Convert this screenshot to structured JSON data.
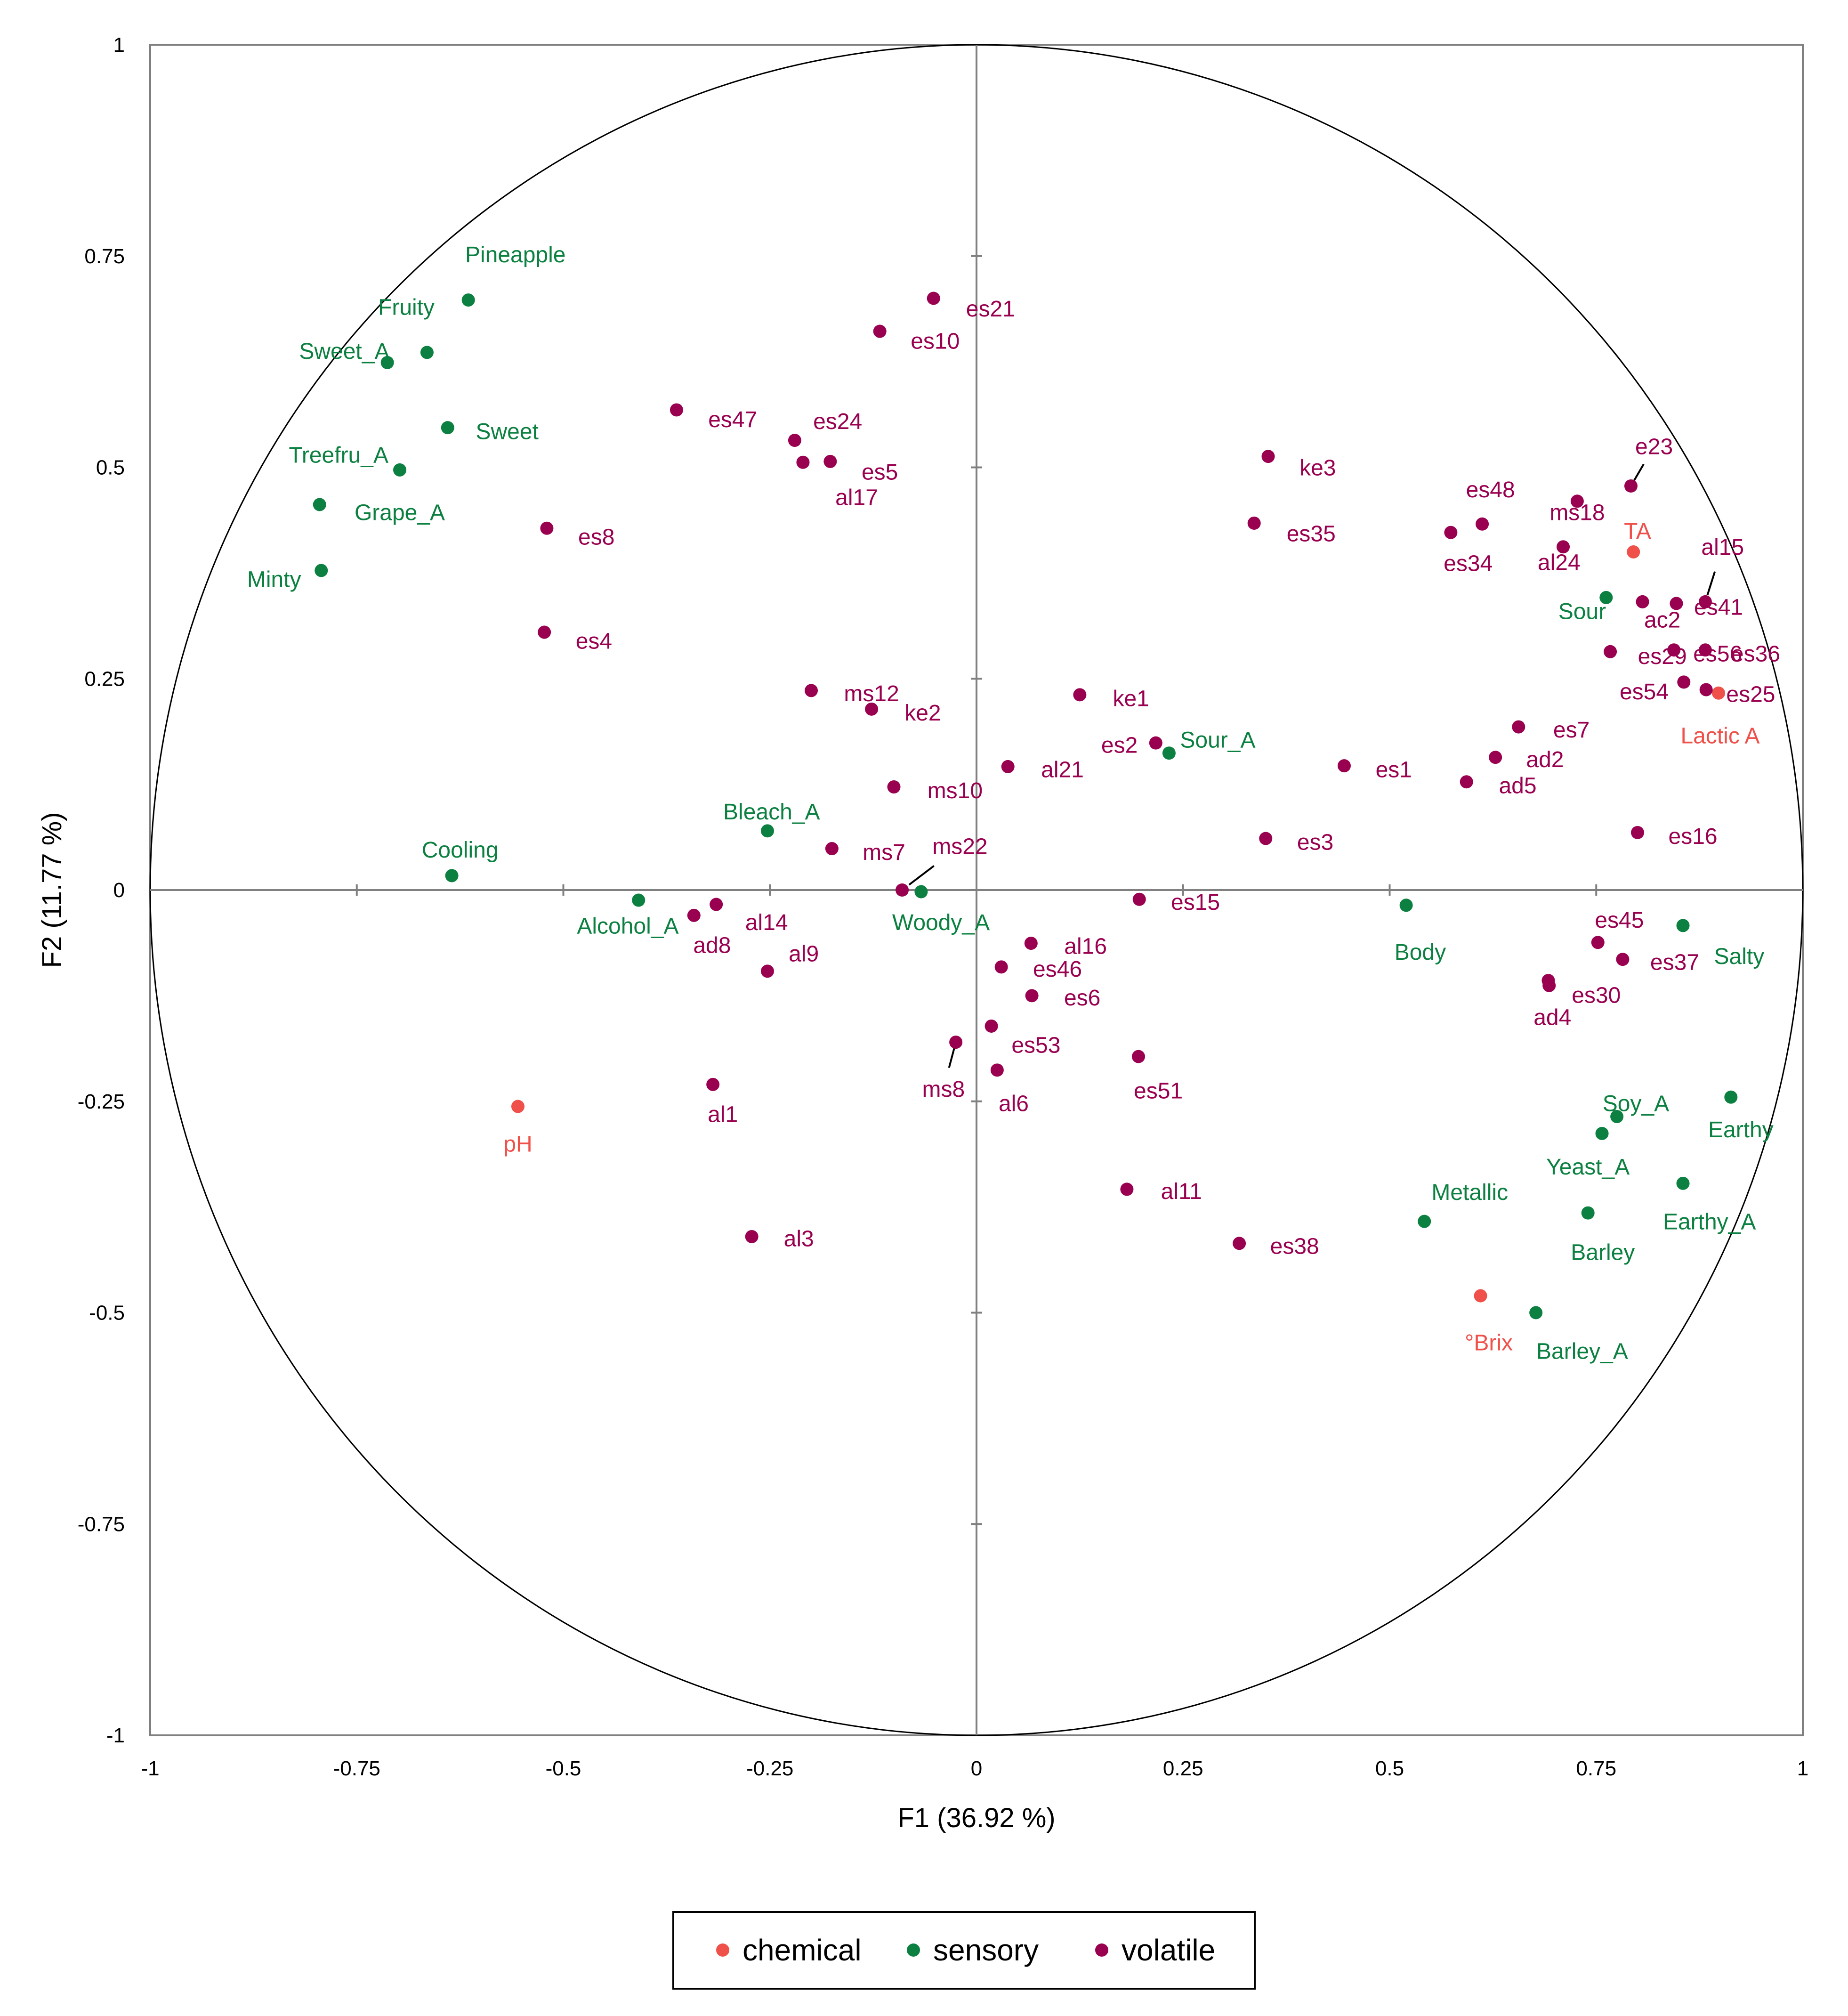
{
  "chart_data": {
    "type": "scatter",
    "title": "",
    "xlabel": "F1 (36.92 %)",
    "ylabel": "F2 (11.77 %)",
    "xlim": [
      -1,
      1
    ],
    "ylim": [
      -1,
      1
    ],
    "xticks": [
      "-1",
      "-0.75",
      "-0.5",
      "-0.25",
      "0",
      "0.25",
      "0.5",
      "0.75",
      "1"
    ],
    "yticks": [
      "1",
      "0.75",
      "0.5",
      "0.25",
      "0",
      "-0.25",
      "-0.5",
      "-0.75",
      "-1"
    ],
    "grid": false,
    "correlation_circle": true,
    "legend_position": "bottom",
    "colors": {
      "chemical": "#f0504a",
      "sensory": "#0b8040",
      "volatile": "#990050"
    },
    "series": [
      {
        "name": "chemical",
        "points": [
          {
            "label": "TA",
            "x": 0.795,
            "y": 0.4,
            "lx": 0.8,
            "ly": 0.425
          },
          {
            "label": "Lactic A",
            "x": 0.898,
            "y": 0.233,
            "lx": 0.9,
            "ly": 0.183
          },
          {
            "label": "pH",
            "x": -0.555,
            "y": -0.256,
            "lx": -0.555,
            "ly": -0.3
          },
          {
            "label": "°Brix",
            "x": 0.61,
            "y": -0.48,
            "lx": 0.62,
            "ly": -0.535
          }
        ]
      },
      {
        "name": "sensory",
        "points": [
          {
            "label": "Pineapple",
            "x": -0.615,
            "y": 0.698,
            "lx": -0.558,
            "ly": 0.752
          },
          {
            "label": "Fruity",
            "x": -0.665,
            "y": 0.636,
            "lx": -0.69,
            "ly": 0.69
          },
          {
            "label": "Sweet_A",
            "x": -0.713,
            "y": 0.624,
            "lx": -0.765,
            "ly": 0.638
          },
          {
            "label": "Sweet",
            "x": -0.64,
            "y": 0.547,
            "lx": -0.568,
            "ly": 0.543
          },
          {
            "label": "Treefru_A",
            "x": -0.698,
            "y": 0.497,
            "lx": -0.772,
            "ly": 0.515
          },
          {
            "label": "Grape_A",
            "x": -0.795,
            "y": 0.456,
            "lx": -0.698,
            "ly": 0.447
          },
          {
            "label": "Minty",
            "x": -0.793,
            "y": 0.378,
            "lx": -0.85,
            "ly": 0.368
          },
          {
            "label": "Sour",
            "x": 0.762,
            "y": 0.346,
            "lx": 0.733,
            "ly": 0.33
          },
          {
            "label": "Sour_A",
            "x": 0.233,
            "y": 0.162,
            "lx": 0.292,
            "ly": 0.178
          },
          {
            "label": "Bleach_A",
            "x": -0.253,
            "y": 0.07,
            "lx": -0.248,
            "ly": 0.093
          },
          {
            "label": "Cooling",
            "x": -0.635,
            "y": 0.017,
            "lx": -0.625,
            "ly": 0.048
          },
          {
            "label": "Alcohol_A",
            "x": -0.409,
            "y": -0.012,
            "lx": -0.422,
            "ly": -0.042
          },
          {
            "label": "Woody_A",
            "x": -0.067,
            "y": -0.002,
            "lx": -0.043,
            "ly": -0.038
          },
          {
            "label": "Body",
            "x": 0.52,
            "y": -0.018,
            "lx": 0.537,
            "ly": -0.073
          },
          {
            "label": "Salty",
            "x": 0.855,
            "y": -0.042,
            "lx": 0.923,
            "ly": -0.078
          },
          {
            "label": "Soy_A",
            "x": 0.775,
            "y": -0.268,
            "lx": 0.798,
            "ly": -0.252
          },
          {
            "label": "Earthy",
            "x": 0.913,
            "y": -0.245,
            "lx": 0.925,
            "ly": -0.283
          },
          {
            "label": "Yeast_A",
            "x": 0.757,
            "y": -0.288,
            "lx": 0.74,
            "ly": -0.327
          },
          {
            "label": "Earthy_A",
            "x": 0.855,
            "y": -0.347,
            "lx": 0.887,
            "ly": -0.392
          },
          {
            "label": "Metallic",
            "x": 0.542,
            "y": -0.392,
            "lx": 0.597,
            "ly": -0.357
          },
          {
            "label": "Barley",
            "x": 0.74,
            "y": -0.382,
            "lx": 0.758,
            "ly": -0.428
          },
          {
            "label": "Barley_A",
            "x": 0.677,
            "y": -0.5,
            "lx": 0.733,
            "ly": -0.545
          }
        ]
      },
      {
        "name": "volatile",
        "points": [
          {
            "label": "es21",
            "x": -0.052,
            "y": 0.7,
            "lx": 0.017,
            "ly": 0.688
          },
          {
            "label": "es10",
            "x": -0.117,
            "y": 0.661,
            "lx": -0.05,
            "ly": 0.65
          },
          {
            "label": "es47",
            "x": -0.363,
            "y": 0.568,
            "lx": -0.295,
            "ly": 0.557
          },
          {
            "label": "es24",
            "x": -0.22,
            "y": 0.532,
            "lx": -0.168,
            "ly": 0.555
          },
          {
            "label": "es5",
            "x": -0.177,
            "y": 0.507,
            "lx": -0.117,
            "ly": 0.495
          },
          {
            "label": "al17",
            "x": -0.21,
            "y": 0.506,
            "lx": -0.145,
            "ly": 0.465
          },
          {
            "label": "ke3",
            "x": 0.353,
            "y": 0.513,
            "lx": 0.413,
            "ly": 0.5
          },
          {
            "label": "es35",
            "x": 0.336,
            "y": 0.434,
            "lx": 0.405,
            "ly": 0.422
          },
          {
            "label": "es48",
            "x": 0.612,
            "y": 0.433,
            "lx": 0.622,
            "ly": 0.474
          },
          {
            "label": "es34",
            "x": 0.574,
            "y": 0.423,
            "lx": 0.595,
            "ly": 0.387
          },
          {
            "label": "ms18",
            "x": 0.727,
            "y": 0.46,
            "lx": 0.727,
            "ly": 0.447
          },
          {
            "label": "e23",
            "x": 0.792,
            "y": 0.478,
            "lx": 0.82,
            "ly": 0.525
          },
          {
            "label": "al24",
            "x": 0.71,
            "y": 0.406,
            "lx": 0.705,
            "ly": 0.388
          },
          {
            "label": "al15",
            "x": 0.882,
            "y": 0.341,
            "lx": 0.903,
            "ly": 0.406
          },
          {
            "label": "ac2",
            "x": 0.806,
            "y": 0.341,
            "lx": 0.83,
            "ly": 0.32
          },
          {
            "label": "es41",
            "x": 0.847,
            "y": 0.339,
            "lx": 0.898,
            "ly": 0.335
          },
          {
            "label": "es29",
            "x": 0.767,
            "y": 0.282,
            "lx": 0.83,
            "ly": 0.277
          },
          {
            "label": "es56",
            "x": 0.844,
            "y": 0.284,
            "lx": 0.897,
            "ly": 0.28
          },
          {
            "label": "es36",
            "x": 0.882,
            "y": 0.284,
            "lx": 0.943,
            "ly": 0.28
          },
          {
            "label": "es54",
            "x": 0.856,
            "y": 0.246,
            "lx": 0.808,
            "ly": 0.235
          },
          {
            "label": "es25",
            "x": 0.883,
            "y": 0.237,
            "lx": 0.937,
            "ly": 0.232
          },
          {
            "label": "es8",
            "x": -0.52,
            "y": 0.428,
            "lx": -0.46,
            "ly": 0.418
          },
          {
            "label": "es4",
            "x": -0.523,
            "y": 0.305,
            "lx": -0.463,
            "ly": 0.295
          },
          {
            "label": "ms12",
            "x": -0.2,
            "y": 0.236,
            "lx": -0.127,
            "ly": 0.233
          },
          {
            "label": "ke2",
            "x": -0.127,
            "y": 0.214,
            "lx": -0.065,
            "ly": 0.21
          },
          {
            "label": "ke1",
            "x": 0.125,
            "y": 0.231,
            "lx": 0.187,
            "ly": 0.227
          },
          {
            "label": "es2",
            "x": 0.217,
            "y": 0.174,
            "lx": 0.173,
            "ly": 0.172
          },
          {
            "label": "es7",
            "x": 0.656,
            "y": 0.193,
            "lx": 0.72,
            "ly": 0.19
          },
          {
            "label": "ad2",
            "x": 0.628,
            "y": 0.157,
            "lx": 0.688,
            "ly": 0.155
          },
          {
            "label": "es1",
            "x": 0.445,
            "y": 0.147,
            "lx": 0.505,
            "ly": 0.143
          },
          {
            "label": "ad5",
            "x": 0.593,
            "y": 0.128,
            "lx": 0.655,
            "ly": 0.124
          },
          {
            "label": "al21",
            "x": 0.038,
            "y": 0.146,
            "lx": 0.104,
            "ly": 0.143
          },
          {
            "label": "ms10",
            "x": -0.1,
            "y": 0.122,
            "lx": -0.026,
            "ly": 0.118
          },
          {
            "label": "es16",
            "x": 0.8,
            "y": 0.068,
            "lx": 0.867,
            "ly": 0.064
          },
          {
            "label": "ms7",
            "x": -0.175,
            "y": 0.049,
            "lx": -0.112,
            "ly": 0.045
          },
          {
            "label": "es3",
            "x": 0.35,
            "y": 0.061,
            "lx": 0.41,
            "ly": 0.057
          },
          {
            "label": "ms22",
            "x": -0.09,
            "y": 0.0,
            "lx": -0.02,
            "ly": 0.052
          },
          {
            "label": "es15",
            "x": 0.197,
            "y": -0.011,
            "lx": 0.265,
            "ly": -0.014
          },
          {
            "label": "al14",
            "x": -0.315,
            "y": -0.017,
            "lx": -0.254,
            "ly": -0.038
          },
          {
            "label": "ad8",
            "x": -0.342,
            "y": -0.03,
            "lx": -0.32,
            "ly": -0.065
          },
          {
            "label": "al9",
            "x": -0.253,
            "y": -0.096,
            "lx": -0.209,
            "ly": -0.075
          },
          {
            "label": "es45",
            "x": 0.752,
            "y": -0.062,
            "lx": 0.778,
            "ly": -0.035
          },
          {
            "label": "es37",
            "x": 0.782,
            "y": -0.082,
            "lx": 0.845,
            "ly": -0.085
          },
          {
            "label": "es30",
            "x": 0.692,
            "y": -0.107,
            "lx": 0.75,
            "ly": -0.124
          },
          {
            "label": "ad4",
            "x": 0.693,
            "y": -0.113,
            "lx": 0.697,
            "ly": -0.15
          },
          {
            "label": "al16",
            "x": 0.066,
            "y": -0.063,
            "lx": 0.132,
            "ly": -0.066
          },
          {
            "label": "es46",
            "x": 0.03,
            "y": -0.091,
            "lx": 0.098,
            "ly": -0.093
          },
          {
            "label": "es6",
            "x": 0.067,
            "y": -0.125,
            "lx": 0.128,
            "ly": -0.127
          },
          {
            "label": "es53",
            "x": 0.018,
            "y": -0.161,
            "lx": 0.072,
            "ly": -0.183
          },
          {
            "label": "ms8",
            "x": -0.025,
            "y": -0.18,
            "lx": -0.04,
            "ly": -0.235
          },
          {
            "label": "al6",
            "x": 0.025,
            "y": -0.213,
            "lx": 0.045,
            "ly": -0.252
          },
          {
            "label": "es51",
            "x": 0.196,
            "y": -0.197,
            "lx": 0.22,
            "ly": -0.237
          },
          {
            "label": "al1",
            "x": -0.319,
            "y": -0.23,
            "lx": -0.307,
            "ly": -0.265
          },
          {
            "label": "al11",
            "x": 0.182,
            "y": -0.354,
            "lx": 0.248,
            "ly": -0.356
          },
          {
            "label": "es38",
            "x": 0.318,
            "y": -0.418,
            "lx": 0.385,
            "ly": -0.421
          },
          {
            "label": "al3",
            "x": -0.272,
            "y": -0.41,
            "lx": -0.215,
            "ly": -0.412
          }
        ]
      }
    ],
    "leader_lines": [
      "ms22",
      "ms8",
      "e23",
      "al15"
    ]
  }
}
